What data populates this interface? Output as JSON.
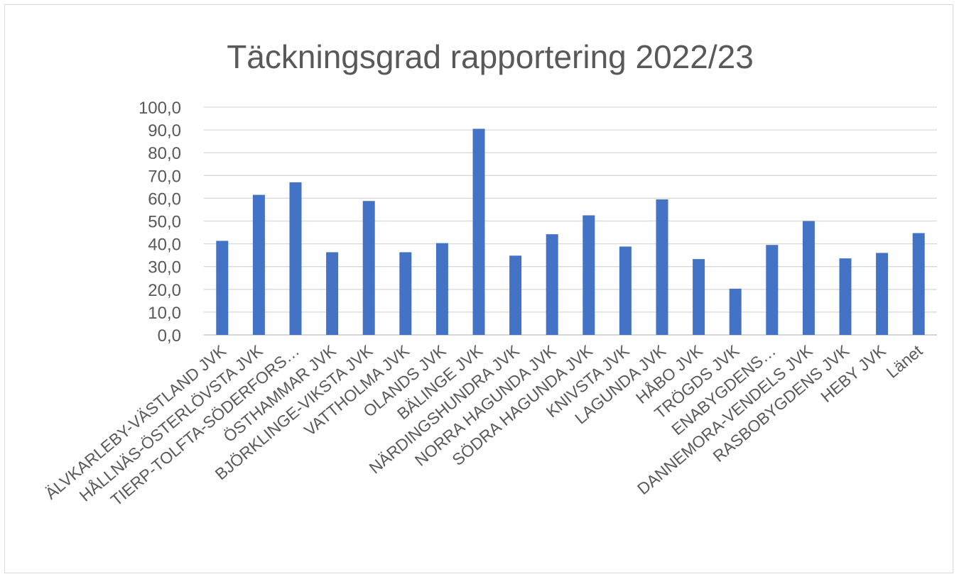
{
  "chart_data": {
    "type": "bar",
    "title": "Täckningsgrad rapportering 2022/23",
    "xlabel": "",
    "ylabel": "",
    "ylim": [
      0,
      100
    ],
    "yticks": [
      "0,0",
      "10,0",
      "20,0",
      "30,0",
      "40,0",
      "50,0",
      "60,0",
      "70,0",
      "80,0",
      "90,0",
      "100,0"
    ],
    "grid": true,
    "legend": "none",
    "bar_color": "#4472c4",
    "categories": [
      "ÄLVKARLEBY-VÄSTLAND JVK",
      "HÅLLNÄS-ÖSTERLÖVSTA JVK",
      "TIERP-TOLFTA-SÖDERFORS…",
      "ÖSTHAMMAR JVK",
      "BJÖRKLINGE-VIKSTA JVK",
      "VATTHOLMA JVK",
      "OLANDS JVK",
      "BÄLINGE JVK",
      "NÄRDINGSHUNDRA JVK",
      "NORRA HAGUNDA JVK",
      "SÖDRA HAGUNDA JVK",
      "KNIVSTA JVK",
      "LAGUNDA JVK",
      "HÅBO JVK",
      "TRÖGDS JVK",
      "ENABYGDENS…",
      "DANNEMORA-VENDELS JVK",
      "RASBOBYGDENS JVK",
      "HEBY JVK",
      "Länet"
    ],
    "values": [
      41.3,
      61.5,
      67.0,
      36.3,
      58.8,
      36.3,
      40.3,
      90.5,
      34.8,
      44.2,
      52.5,
      38.8,
      59.5,
      33.3,
      20.3,
      39.5,
      50.0,
      33.6,
      36.0,
      44.7
    ]
  }
}
